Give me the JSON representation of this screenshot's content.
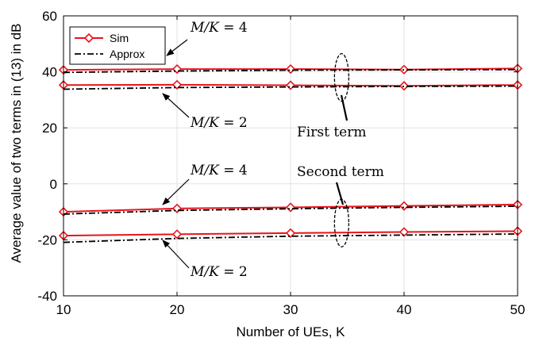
{
  "chart_data": {
    "type": "line",
    "xlabel": "Number of UEs, K",
    "ylabel": "Average value of two terms in (13) in dB",
    "xlim": [
      10,
      50
    ],
    "ylim": [
      -40,
      60
    ],
    "xticks": [
      10,
      20,
      30,
      40,
      50
    ],
    "yticks": [
      -40,
      -20,
      0,
      20,
      40,
      60
    ],
    "grid": true,
    "legend": {
      "placement": "top-left",
      "entries": [
        "Sim",
        "Approx"
      ]
    },
    "x": [
      10,
      20,
      30,
      40,
      50
    ],
    "series": [
      {
        "legend": "Sim",
        "group": "First term, M/K = 4",
        "style": "solid-diamond",
        "color": "#e8141b",
        "values": [
          40.7,
          41.0,
          41.0,
          40.8,
          41.2
        ]
      },
      {
        "legend": "Approx",
        "group": "First term, M/K = 4",
        "style": "dashdot",
        "color": "#000000",
        "values": [
          39.8,
          40.3,
          40.6,
          40.7,
          40.8
        ]
      },
      {
        "legend": "Sim",
        "group": "First term, M/K = 2",
        "style": "solid-diamond",
        "color": "#e8141b",
        "values": [
          35.3,
          35.4,
          35.2,
          35.0,
          35.3
        ]
      },
      {
        "legend": "Approx",
        "group": "First term, M/K = 2",
        "style": "dashdot",
        "color": "#000000",
        "values": [
          33.8,
          34.4,
          34.6,
          34.8,
          34.9
        ]
      },
      {
        "legend": "Sim",
        "group": "Second term, M/K = 4",
        "style": "solid-diamond",
        "color": "#e8141b",
        "values": [
          -10.0,
          -8.8,
          -8.4,
          -7.9,
          -7.4
        ]
      },
      {
        "legend": "Approx",
        "group": "Second term, M/K = 4",
        "style": "dashdot",
        "color": "#000000",
        "values": [
          -10.8,
          -9.5,
          -8.9,
          -8.4,
          -8.0
        ]
      },
      {
        "legend": "Sim",
        "group": "Second term, M/K = 2",
        "style": "solid-diamond",
        "color": "#e8141b",
        "values": [
          -18.5,
          -18.0,
          -17.6,
          -17.2,
          -16.9
        ]
      },
      {
        "legend": "Approx",
        "group": "Second term, M/K = 2",
        "style": "dashdot",
        "color": "#000000",
        "values": [
          -20.9,
          -19.5,
          -18.7,
          -18.3,
          -17.9
        ]
      }
    ],
    "annotations": [
      {
        "text": "M/K = 4",
        "arrow_to": [
          20,
          41.3
        ]
      },
      {
        "text": "M/K = 2",
        "arrow_to": [
          23,
          34.6
        ]
      },
      {
        "text": "M/K = 4",
        "arrow_to": [
          23,
          -7.9
        ]
      },
      {
        "text": "M/K = 2",
        "arrow_to": [
          23,
          -18.9
        ]
      },
      {
        "text": "First term",
        "ellipse_at": [
          34.5,
          38.0
        ]
      },
      {
        "text": "Second term",
        "ellipse_at": [
          34.5,
          -14.0
        ]
      }
    ]
  }
}
